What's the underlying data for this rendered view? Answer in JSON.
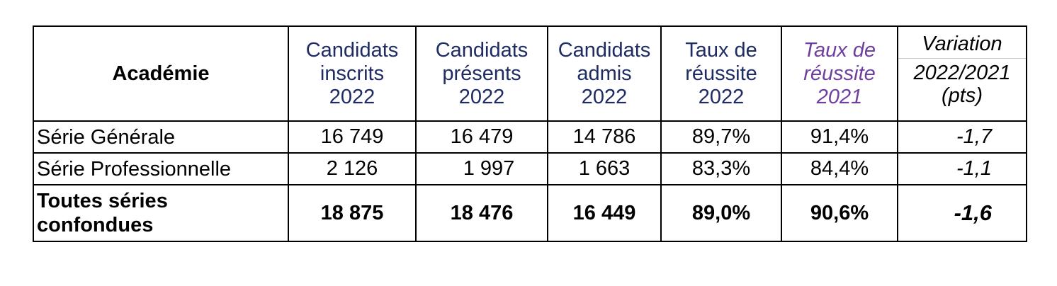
{
  "table": {
    "headers": {
      "academie": "Académie",
      "inscrits": [
        "Candidats",
        "inscrits",
        "2022"
      ],
      "presents": [
        "Candidats",
        "présents",
        "2022"
      ],
      "admis": [
        "Candidats",
        "admis",
        "2022"
      ],
      "taux_2022": [
        "Taux de",
        "réussite",
        "2022"
      ],
      "taux_2021": [
        "Taux de",
        "réussite",
        "2021"
      ],
      "variation_top": "Variation",
      "variation_bottom": [
        "2022/2021",
        "(pts)"
      ]
    },
    "rows": [
      {
        "label": "Série Générale",
        "inscrits": "16 749",
        "presents": "16 479",
        "admis": "14 786",
        "taux_2022": "89,7%",
        "taux_2021": "91,4%",
        "variation": "-1,7"
      },
      {
        "label": "Série Professionnelle",
        "inscrits": "2 126",
        "presents": "1 997",
        "admis": "1 663",
        "taux_2022": "83,3%",
        "taux_2021": "84,4%",
        "variation": "-1,1"
      }
    ],
    "total": {
      "label_lines": [
        "Toutes séries",
        "confondues"
      ],
      "inscrits": "18 875",
      "presents": "18 476",
      "admis": "16 449",
      "taux_2022": "89,0%",
      "taux_2021": "90,6%",
      "variation": "-1,6"
    }
  },
  "colors": {
    "header_blue": "#1f2c64",
    "header_purple": "#6f3fa0",
    "border": "#000000"
  }
}
